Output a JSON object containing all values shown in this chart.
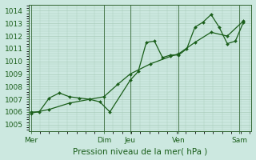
{
  "title": "Pression niveau de la mer( hPa )",
  "xlim": [
    0,
    5.5
  ],
  "ylim": [
    1004.5,
    1014.5
  ],
  "yticks": [
    1005,
    1006,
    1007,
    1008,
    1009,
    1010,
    1011,
    1012,
    1013,
    1014
  ],
  "xtick_labels": [
    "Mer",
    "Dim",
    "Jeu",
    "Ven",
    "Sam"
  ],
  "xtick_positions": [
    0.05,
    1.85,
    2.5,
    3.7,
    5.2
  ],
  "vlines": [
    0.05,
    1.85,
    2.5,
    3.7,
    5.2
  ],
  "background_color": "#cce8e0",
  "grid_color": "#aaccbb",
  "line_color": "#1a5e1a",
  "line1_x": [
    0.05,
    0.25,
    0.5,
    0.75,
    1.0,
    1.25,
    1.5,
    1.75,
    2.0,
    2.5,
    2.7,
    2.9,
    3.1,
    3.3,
    3.5,
    3.7,
    3.9,
    4.1,
    4.3,
    4.5,
    4.7,
    4.9,
    5.1,
    5.3
  ],
  "line1_y": [
    1006.0,
    1006.0,
    1007.1,
    1007.5,
    1007.2,
    1007.1,
    1007.0,
    1006.8,
    1006.0,
    1008.5,
    1009.2,
    1011.5,
    1011.6,
    1010.3,
    1010.5,
    1010.5,
    1011.0,
    1012.7,
    1013.1,
    1013.7,
    1012.7,
    1011.4,
    1011.6,
    1013.1
  ],
  "line2_x": [
    0.05,
    0.5,
    1.0,
    1.5,
    1.85,
    2.2,
    2.5,
    3.0,
    3.5,
    3.7,
    4.1,
    4.5,
    4.9,
    5.3
  ],
  "line2_y": [
    1005.9,
    1006.2,
    1006.7,
    1007.0,
    1007.2,
    1008.2,
    1009.0,
    1009.8,
    1010.4,
    1010.6,
    1011.5,
    1012.3,
    1012.0,
    1013.2
  ],
  "fontsize_label": 7.5,
  "fontsize_tick": 6.5
}
